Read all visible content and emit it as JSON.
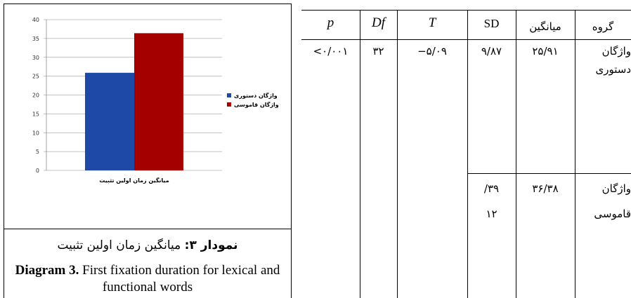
{
  "chart_data": {
    "type": "bar",
    "categories": [
      "میانگین زمان اولین تثبیت"
    ],
    "series": [
      {
        "name": "واژگان دستوری",
        "values": [
          25.9
        ],
        "color": "#1F49A6"
      },
      {
        "name": "واژگان قاموسی",
        "values": [
          36.4
        ],
        "color": "#A50000"
      }
    ],
    "ylim": [
      0,
      40
    ],
    "yticks": [
      "0",
      "5",
      "10",
      "15",
      "20",
      "25",
      "30",
      "35",
      "40"
    ],
    "grid": true,
    "legend_position": "right"
  },
  "caption": {
    "fa_label": "نمودار ۳:",
    "fa_text": " میانگین زمان اولین تثبیت",
    "en_label": "Diagram 3.",
    "en_text": " First fixation duration for lexical and functional words"
  },
  "table": {
    "headers": {
      "p": "p",
      "df": "Df",
      "t": "T",
      "sd": "SD",
      "mean": "میانگین",
      "group": "گروه"
    },
    "row1": {
      "p": "<۰/۰۰۱",
      "df": "۳۲",
      "t": "−۵/۰۹",
      "sd": "۹/۸۷",
      "mean": "۲۵/۹۱",
      "group_line1": "واژگان",
      "group_line2": "دستوری"
    },
    "row2": {
      "sd_line1": "/۳۹",
      "sd_line2": "۱۲",
      "mean": "۳۶/۳۸",
      "group_line1": "واژگان",
      "group_line2": "قاموسی"
    }
  }
}
